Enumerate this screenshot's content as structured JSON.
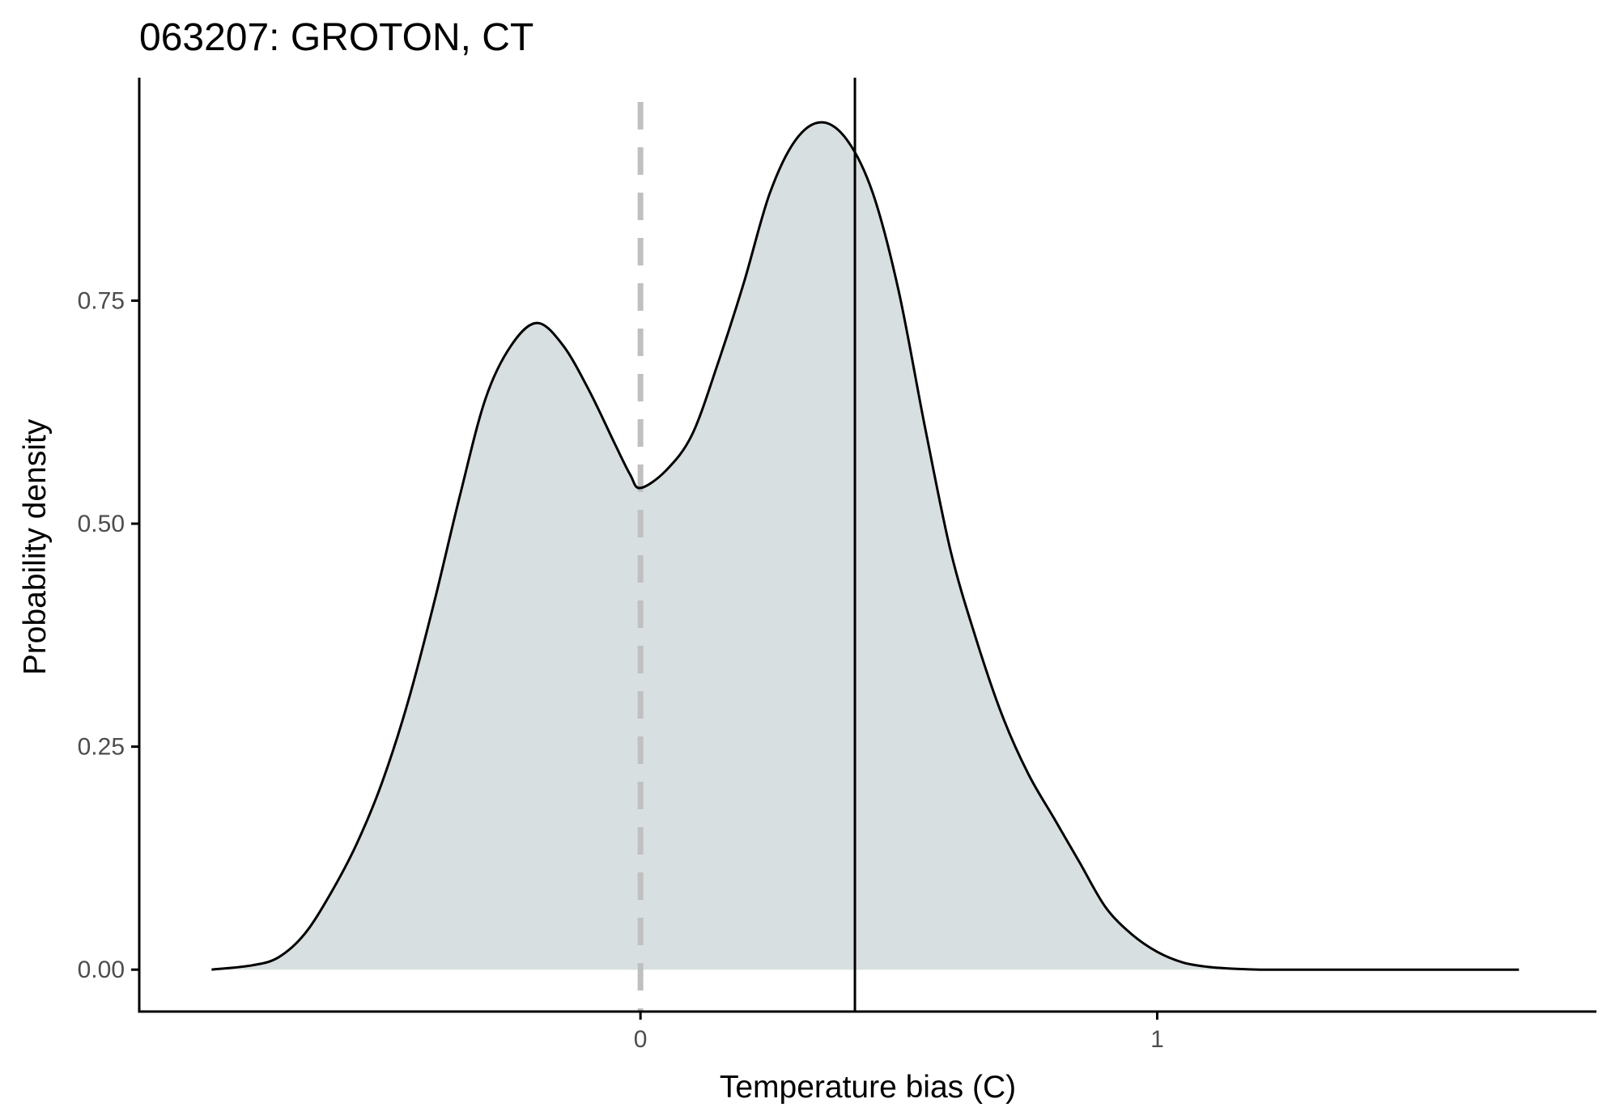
{
  "chart_data": {
    "type": "area",
    "title": "063207: GROTON, CT",
    "xlabel": "Temperature bias (C)",
    "ylabel": "Probability density",
    "xlim": [
      -0.97,
      1.85
    ],
    "ylim": [
      -0.047,
      1.0
    ],
    "x_ticks": [
      0,
      1
    ],
    "x_tick_labels": [
      "0",
      "1"
    ],
    "y_ticks": [
      0,
      0.25,
      0.5,
      0.75
    ],
    "y_tick_labels": [
      "0.00",
      "0.25",
      "0.50",
      "0.75"
    ],
    "grid": false,
    "legend": "none",
    "reference_lines": [
      {
        "x": 0.0,
        "style": "dashed"
      },
      {
        "x": 0.415,
        "style": "solid"
      }
    ],
    "series": [
      {
        "x": [
          -0.83,
          -0.75,
          -0.7,
          -0.65,
          -0.6,
          -0.55,
          -0.5,
          -0.45,
          -0.4,
          -0.35,
          -0.3,
          -0.25,
          -0.2,
          -0.15,
          -0.1,
          -0.05,
          -0.02,
          0.0,
          0.05,
          0.1,
          0.15,
          0.2,
          0.25,
          0.3,
          0.35,
          0.4,
          0.45,
          0.5,
          0.55,
          0.6,
          0.65,
          0.7,
          0.75,
          0.8,
          0.85,
          0.9,
          0.95,
          1.0,
          1.05,
          1.1,
          1.15,
          1.2,
          1.3,
          1.4,
          1.5,
          1.6,
          1.7
        ],
        "values": [
          0.0,
          0.005,
          0.014,
          0.04,
          0.085,
          0.14,
          0.21,
          0.3,
          0.41,
          0.53,
          0.64,
          0.7,
          0.725,
          0.7,
          0.65,
          0.59,
          0.555,
          0.54,
          0.56,
          0.6,
          0.68,
          0.77,
          0.87,
          0.93,
          0.95,
          0.93,
          0.87,
          0.76,
          0.61,
          0.47,
          0.37,
          0.285,
          0.22,
          0.17,
          0.12,
          0.07,
          0.04,
          0.02,
          0.008,
          0.003,
          0.001,
          0.0,
          0.0,
          0.0,
          0.0,
          0.0,
          0.0
        ]
      }
    ]
  },
  "colors": {
    "density_fill": "#d8dfe0",
    "density_line": "#000000",
    "reference_dashed": "#c0c0c0",
    "reference_solid": "#000000",
    "axis": "#000000",
    "tick_label": "#4d4d4d"
  }
}
